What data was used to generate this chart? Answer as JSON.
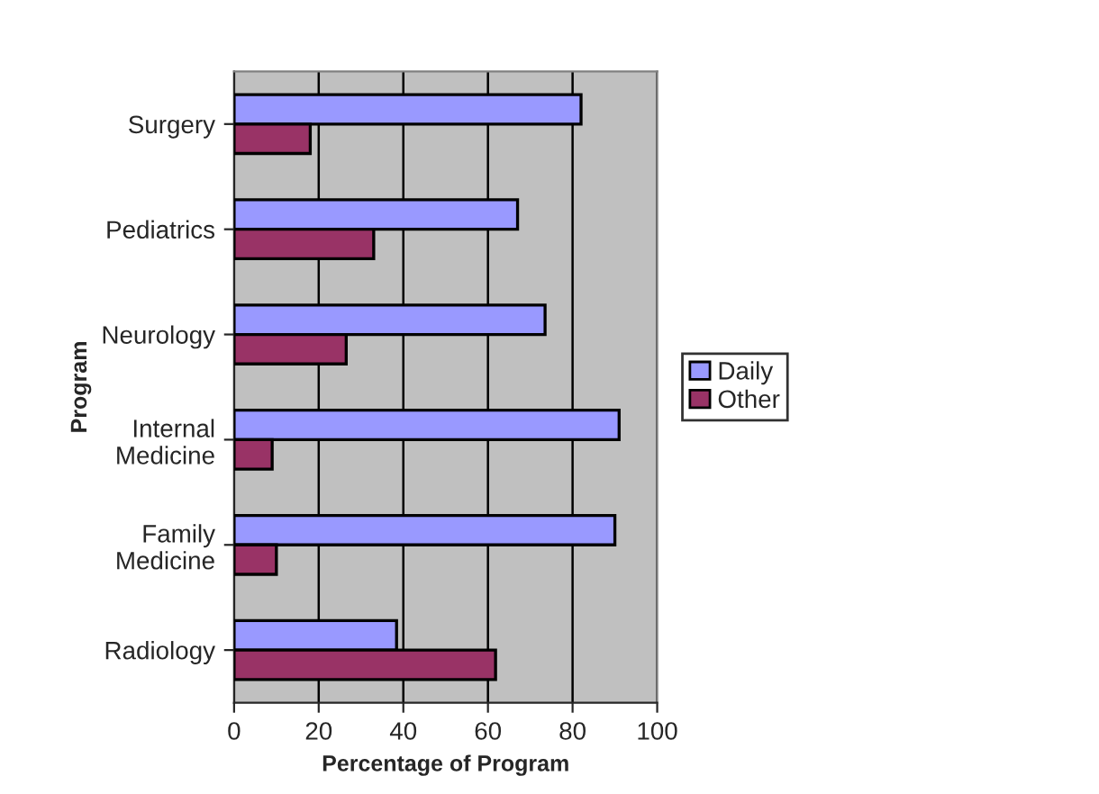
{
  "chart_data": {
    "type": "bar",
    "orientation": "horizontal",
    "xlabel": "Percentage of Program",
    "ylabel": "Program",
    "categories": [
      "Surgery",
      "Pediatrics",
      "Neurology",
      "Internal\nMedicine",
      "Family\nMedicine",
      "Radiology"
    ],
    "series": [
      {
        "name": "Daily",
        "color": "#9999ff",
        "values": [
          82,
          67,
          73.5,
          91,
          90,
          38.4
        ]
      },
      {
        "name": "Other",
        "color": "#993366",
        "values": [
          18,
          33,
          26.5,
          9,
          10,
          61.8
        ]
      }
    ],
    "xlim": [
      0,
      100
    ],
    "xticks": [
      0,
      20,
      40,
      60,
      80,
      100
    ],
    "grid": "x",
    "legend": "right"
  }
}
